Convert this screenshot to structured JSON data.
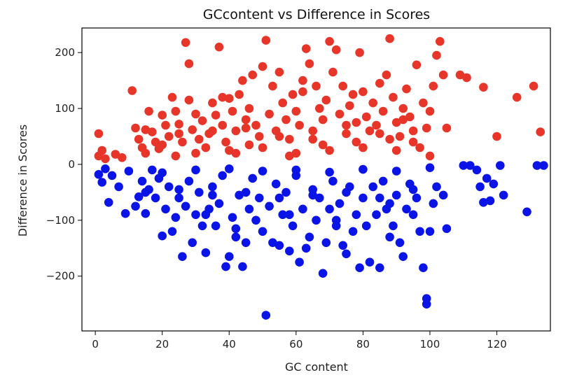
{
  "chart_data": {
    "type": "scatter",
    "title": "GCcontent vs Difference in Scores",
    "xlabel": "GC content",
    "ylabel": "Difference in Scores",
    "xlim": [
      -4,
      136
    ],
    "ylim": [
      -298,
      244
    ],
    "xticks": [
      0,
      20,
      40,
      60,
      80,
      100,
      120
    ],
    "yticks": [
      -200,
      -100,
      0,
      100,
      200
    ],
    "xtick_labels": [
      "0",
      "20",
      "40",
      "60",
      "80",
      "100",
      "120"
    ],
    "ytick_labels": [
      "−200",
      "−100",
      "0",
      "100",
      "200"
    ],
    "grid": false,
    "series": [
      {
        "color": "#e8352a",
        "points": [
          [
            1,
            55
          ],
          [
            1,
            15
          ],
          [
            2,
            25
          ],
          [
            3,
            10
          ],
          [
            6,
            18
          ],
          [
            8,
            12
          ],
          [
            11,
            132
          ],
          [
            12,
            65
          ],
          [
            13,
            45
          ],
          [
            14,
            30
          ],
          [
            15,
            20
          ],
          [
            17,
            58
          ],
          [
            18,
            40
          ],
          [
            19,
            28
          ],
          [
            20,
            88
          ],
          [
            21,
            70
          ],
          [
            22,
            50
          ],
          [
            23,
            120
          ],
          [
            24,
            95
          ],
          [
            25,
            72
          ],
          [
            26,
            40
          ],
          [
            27,
            218
          ],
          [
            28,
            180
          ],
          [
            28,
            115
          ],
          [
            29,
            62
          ],
          [
            30,
            90
          ],
          [
            31,
            45
          ],
          [
            32,
            78
          ],
          [
            33,
            30
          ],
          [
            34,
            55
          ],
          [
            35,
            110
          ],
          [
            36,
            88
          ],
          [
            37,
            210
          ],
          [
            38,
            70
          ],
          [
            39,
            40
          ],
          [
            40,
            118
          ],
          [
            41,
            95
          ],
          [
            42,
            60
          ],
          [
            43,
            125
          ],
          [
            44,
            150
          ],
          [
            45,
            80
          ],
          [
            46,
            100
          ],
          [
            46,
            35
          ],
          [
            47,
            160
          ],
          [
            48,
            70
          ],
          [
            49,
            50
          ],
          [
            50,
            175
          ],
          [
            51,
            222
          ],
          [
            52,
            90
          ],
          [
            53,
            140
          ],
          [
            54,
            60
          ],
          [
            55,
            165
          ],
          [
            56,
            110
          ],
          [
            57,
            80
          ],
          [
            58,
            45
          ],
          [
            59,
            125
          ],
          [
            60,
            95
          ],
          [
            61,
            70
          ],
          [
            62,
            150
          ],
          [
            63,
            207
          ],
          [
            64,
            180
          ],
          [
            65,
            60
          ],
          [
            66,
            140
          ],
          [
            67,
            100
          ],
          [
            68,
            80
          ],
          [
            69,
            115
          ],
          [
            70,
            220
          ],
          [
            71,
            165
          ],
          [
            72,
            205
          ],
          [
            73,
            90
          ],
          [
            74,
            140
          ],
          [
            75,
            55
          ],
          [
            76,
            105
          ],
          [
            77,
            125
          ],
          [
            78,
            40
          ],
          [
            79,
            200
          ],
          [
            80,
            130
          ],
          [
            81,
            85
          ],
          [
            82,
            60
          ],
          [
            83,
            110
          ],
          [
            84,
            70
          ],
          [
            85,
            145
          ],
          [
            86,
            95
          ],
          [
            87,
            160
          ],
          [
            88,
            225
          ],
          [
            89,
            120
          ],
          [
            90,
            75
          ],
          [
            91,
            50
          ],
          [
            92,
            100
          ],
          [
            93,
            135
          ],
          [
            94,
            85
          ],
          [
            95,
            60
          ],
          [
            96,
            178
          ],
          [
            97,
            30
          ],
          [
            98,
            110
          ],
          [
            99,
            65
          ],
          [
            100,
            95
          ],
          [
            101,
            140
          ],
          [
            102,
            195
          ],
          [
            103,
            220
          ],
          [
            104,
            160
          ],
          [
            105,
            65
          ],
          [
            109,
            160
          ],
          [
            111,
            155
          ],
          [
            116,
            138
          ],
          [
            120,
            50
          ],
          [
            126,
            120
          ],
          [
            131,
            140
          ],
          [
            133,
            58
          ],
          [
            15,
            62
          ],
          [
            25,
            55
          ],
          [
            35,
            60
          ],
          [
            45,
            65
          ],
          [
            55,
            50
          ],
          [
            65,
            45
          ],
          [
            75,
            70
          ],
          [
            85,
            55
          ],
          [
            95,
            40
          ],
          [
            20,
            35
          ],
          [
            30,
            20
          ],
          [
            40,
            25
          ],
          [
            50,
            30
          ],
          [
            60,
            20
          ],
          [
            70,
            25
          ],
          [
            80,
            30
          ],
          [
            90,
            25
          ],
          [
            100,
            15
          ],
          [
            16,
            95
          ],
          [
            38,
            120
          ],
          [
            62,
            130
          ],
          [
            78,
            75
          ],
          [
            92,
            80
          ],
          [
            42,
            20
          ],
          [
            58,
            15
          ],
          [
            68,
            35
          ],
          [
            88,
            45
          ],
          [
            24,
            15
          ]
        ]
      },
      {
        "color": "#0a14e6",
        "points": [
          [
            1,
            -18
          ],
          [
            2,
            -32
          ],
          [
            3,
            -8
          ],
          [
            4,
            -68
          ],
          [
            5,
            -20
          ],
          [
            7,
            -40
          ],
          [
            9,
            -88
          ],
          [
            10,
            -12
          ],
          [
            12,
            -75
          ],
          [
            13,
            -58
          ],
          [
            14,
            -30
          ],
          [
            15,
            -88
          ],
          [
            16,
            -45
          ],
          [
            17,
            -10
          ],
          [
            18,
            -60
          ],
          [
            19,
            -25
          ],
          [
            20,
            -128
          ],
          [
            21,
            -80
          ],
          [
            22,
            -40
          ],
          [
            23,
            -120
          ],
          [
            24,
            -95
          ],
          [
            25,
            -60
          ],
          [
            26,
            -165
          ],
          [
            27,
            -75
          ],
          [
            28,
            -30
          ],
          [
            29,
            -140
          ],
          [
            30,
            -90
          ],
          [
            31,
            -50
          ],
          [
            32,
            -110
          ],
          [
            33,
            -158
          ],
          [
            34,
            -80
          ],
          [
            35,
            -40
          ],
          [
            36,
            -110
          ],
          [
            37,
            -70
          ],
          [
            38,
            -20
          ],
          [
            39,
            -183
          ],
          [
            40,
            -165
          ],
          [
            41,
            -95
          ],
          [
            42,
            -130
          ],
          [
            43,
            -55
          ],
          [
            44,
            -183
          ],
          [
            45,
            -140
          ],
          [
            46,
            -80
          ],
          [
            47,
            -25
          ],
          [
            48,
            -100
          ],
          [
            49,
            -60
          ],
          [
            50,
            -120
          ],
          [
            51,
            -270
          ],
          [
            52,
            -75
          ],
          [
            53,
            -140
          ],
          [
            54,
            -35
          ],
          [
            55,
            -145
          ],
          [
            56,
            -90
          ],
          [
            57,
            -50
          ],
          [
            58,
            -155
          ],
          [
            59,
            -110
          ],
          [
            60,
            -20
          ],
          [
            61,
            -175
          ],
          [
            62,
            -80
          ],
          [
            63,
            -150
          ],
          [
            64,
            -130
          ],
          [
            65,
            -45
          ],
          [
            66,
            -100
          ],
          [
            67,
            -60
          ],
          [
            68,
            -195
          ],
          [
            69,
            -140
          ],
          [
            70,
            -80
          ],
          [
            71,
            -30
          ],
          [
            72,
            -110
          ],
          [
            73,
            -70
          ],
          [
            74,
            -145
          ],
          [
            75,
            -160
          ],
          [
            76,
            -40
          ],
          [
            77,
            -120
          ],
          [
            78,
            -90
          ],
          [
            79,
            -185
          ],
          [
            80,
            -60
          ],
          [
            81,
            -110
          ],
          [
            82,
            -175
          ],
          [
            83,
            -40
          ],
          [
            84,
            -90
          ],
          [
            85,
            -185
          ],
          [
            86,
            -30
          ],
          [
            87,
            -80
          ],
          [
            88,
            -130
          ],
          [
            89,
            -110
          ],
          [
            90,
            -55
          ],
          [
            91,
            -140
          ],
          [
            92,
            -165
          ],
          [
            93,
            -80
          ],
          [
            94,
            -35
          ],
          [
            95,
            -90
          ],
          [
            96,
            -60
          ],
          [
            97,
            -120
          ],
          [
            98,
            -185
          ],
          [
            99,
            -240
          ],
          [
            99,
            -250
          ],
          [
            100,
            -120
          ],
          [
            101,
            -70
          ],
          [
            102,
            -40
          ],
          [
            104,
            -55
          ],
          [
            105,
            -115
          ],
          [
            110,
            -2
          ],
          [
            112,
            -2
          ],
          [
            114,
            -10
          ],
          [
            115,
            -40
          ],
          [
            116,
            -68
          ],
          [
            117,
            -25
          ],
          [
            118,
            -65
          ],
          [
            119,
            -35
          ],
          [
            121,
            -2
          ],
          [
            122,
            -55
          ],
          [
            129,
            -85
          ],
          [
            132,
            -2
          ],
          [
            134,
            -2
          ],
          [
            15,
            -50
          ],
          [
            25,
            -45
          ],
          [
            35,
            -55
          ],
          [
            45,
            -50
          ],
          [
            55,
            -60
          ],
          [
            65,
            -55
          ],
          [
            75,
            -50
          ],
          [
            85,
            -60
          ],
          [
            95,
            -45
          ],
          [
            20,
            -15
          ],
          [
            30,
            -10
          ],
          [
            40,
            -8
          ],
          [
            50,
            -12
          ],
          [
            60,
            -10
          ],
          [
            70,
            -14
          ],
          [
            80,
            -9
          ],
          [
            90,
            -12
          ],
          [
            100,
            -6
          ],
          [
            42,
            -115
          ],
          [
            58,
            -90
          ],
          [
            72,
            -100
          ],
          [
            88,
            -70
          ],
          [
            33,
            -90
          ]
        ]
      }
    ]
  }
}
